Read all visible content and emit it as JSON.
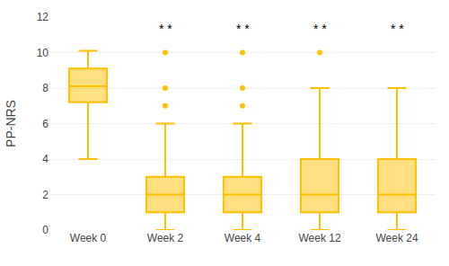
{
  "chart_data": {
    "type": "box",
    "ylabel": "PP-NRS",
    "categories": [
      "Week 0",
      "Week 2",
      "Week 4",
      "Week 12",
      "Week 24"
    ],
    "boxes": [
      {
        "whislo": 4.0,
        "q1": 7.2,
        "med": 8.1,
        "q3": 9.1,
        "whishi": 10.1,
        "fliers": []
      },
      {
        "whislo": 0.0,
        "q1": 1.0,
        "med": 2.0,
        "q3": 3.0,
        "whishi": 6.0,
        "fliers": [
          7.0,
          8.0,
          10.0
        ]
      },
      {
        "whislo": 0.0,
        "q1": 1.0,
        "med": 2.0,
        "q3": 3.0,
        "whishi": 6.0,
        "fliers": [
          7.0,
          8.0,
          10.0
        ]
      },
      {
        "whislo": 0.0,
        "q1": 1.0,
        "med": 2.0,
        "q3": 4.0,
        "whishi": 8.0,
        "fliers": [
          10.0
        ]
      },
      {
        "whislo": 0.0,
        "q1": 1.0,
        "med": 2.0,
        "q3": 4.0,
        "whishi": 8.0,
        "fliers": []
      }
    ],
    "color": "#FFC000",
    "ylim": [
      0,
      12
    ],
    "yticks": [
      0,
      2,
      4,
      6,
      8,
      10,
      12
    ],
    "grid": true,
    "annotations": [
      {
        "category": "Week 2",
        "y": 10.85,
        "text": "* *"
      },
      {
        "category": "Week 4",
        "y": 10.85,
        "text": "* *"
      },
      {
        "category": "Week 12",
        "y": 10.85,
        "text": "* *"
      },
      {
        "category": "Week 24",
        "y": 10.85,
        "text": "* *"
      }
    ]
  }
}
